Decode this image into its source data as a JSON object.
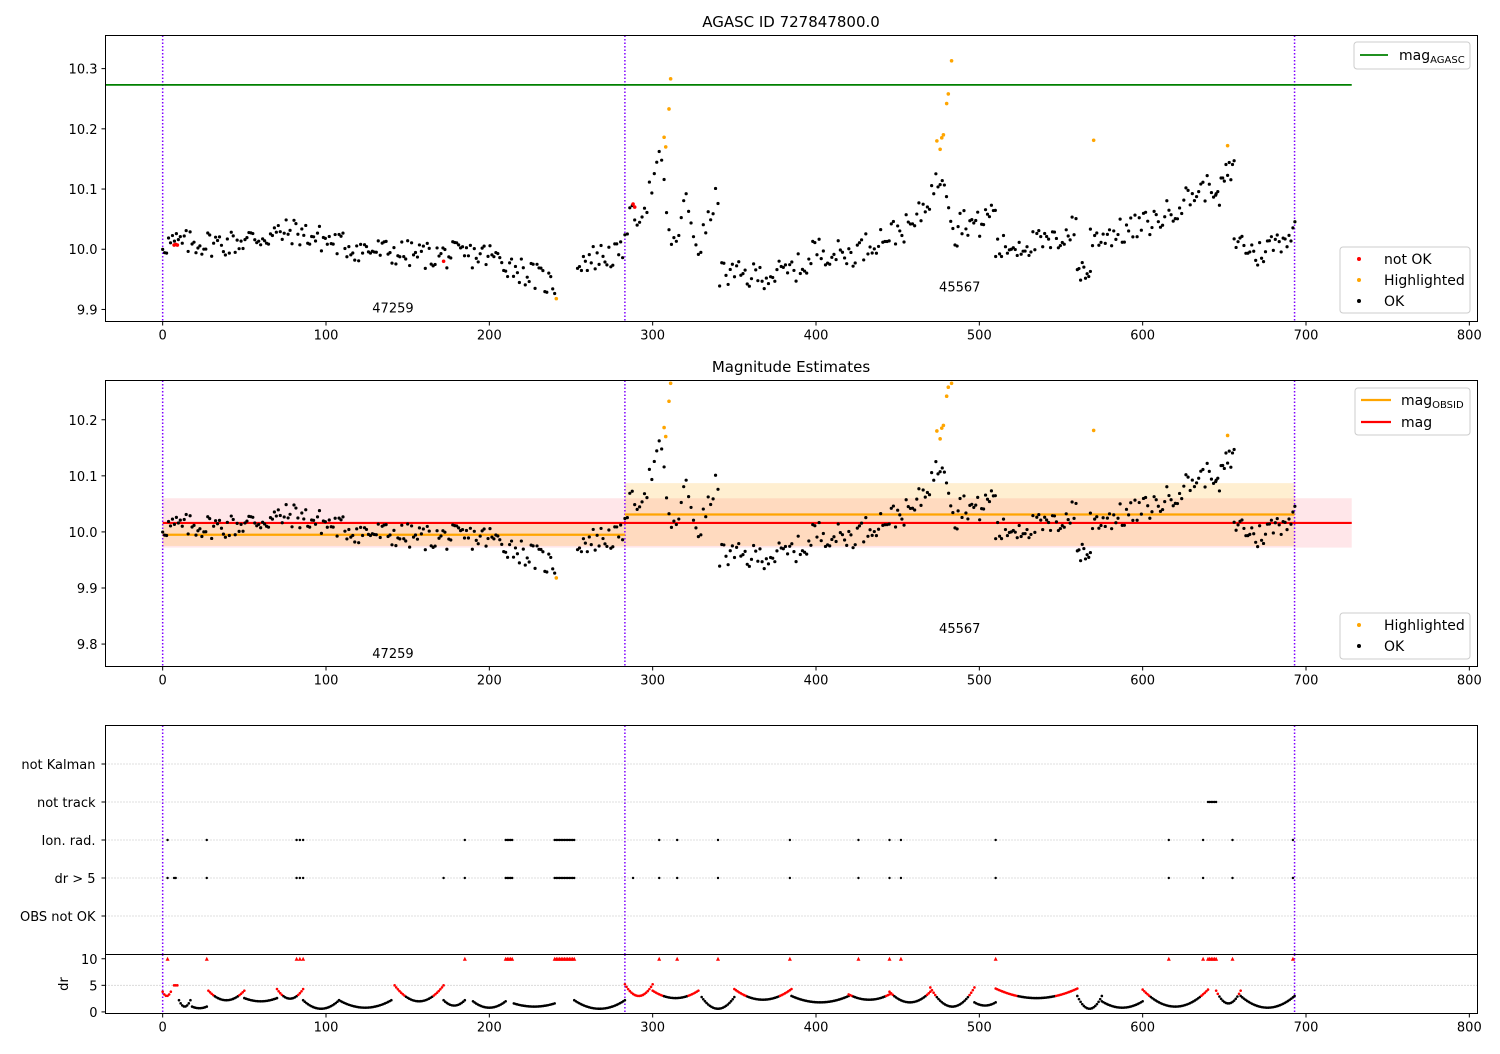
{
  "chart_data": [
    {
      "type": "scatter",
      "title": "AGASC ID 727847800.0",
      "xlim": [
        -35,
        805
      ],
      "ylim": [
        9.88,
        10.355
      ],
      "x_ticks": [
        0,
        100,
        200,
        300,
        400,
        500,
        600,
        700,
        800
      ],
      "y_ticks": [
        9.9,
        10.0,
        10.1,
        10.2,
        10.3
      ],
      "observation_boundaries": [
        0,
        283,
        693
      ],
      "observation_labels": [
        {
          "text": "47259",
          "x": 141,
          "y": 9.895
        },
        {
          "text": "45567",
          "x": 488,
          "y": 9.93
        }
      ],
      "lines": [
        {
          "name": "mag_AGASC",
          "color": "#008000",
          "x": [
            -35,
            728
          ],
          "y": [
            10.273,
            10.273
          ]
        }
      ],
      "series": [
        {
          "name": "not OK",
          "color": "#ff0000",
          "points": [
            [
              7,
              10.007
            ],
            [
              8,
              10.008
            ],
            [
              9,
              10.007
            ],
            [
              172,
              9.98
            ],
            [
              288,
              10.075
            ],
            [
              289,
              10.07
            ]
          ]
        },
        {
          "name": "Highlighted",
          "color": "#ffa500",
          "points": [
            [
              241,
              9.918
            ],
            [
              307,
              10.186
            ],
            [
              308,
              10.17
            ],
            [
              310,
              10.233
            ],
            [
              311,
              10.283
            ],
            [
              474,
              10.18
            ],
            [
              476,
              10.166
            ],
            [
              477,
              10.185
            ],
            [
              478,
              10.19
            ],
            [
              480,
              10.242
            ],
            [
              481,
              10.258
            ],
            [
              483,
              10.313
            ],
            [
              570,
              10.181
            ],
            [
              652,
              10.172
            ]
          ]
        }
      ],
      "ok_segments": [
        {
          "x_start": 0,
          "x_end": 240,
          "step": 1.2,
          "base": [
            [
              0,
              10.01
            ],
            [
              40,
              10.01
            ],
            [
              80,
              10.03
            ],
            [
              120,
              10.0
            ],
            [
              160,
              9.99
            ],
            [
              200,
              9.99
            ],
            [
              240,
              9.94
            ]
          ]
        },
        {
          "x_start": 254,
          "x_end": 282,
          "step": 1.2,
          "base": [
            [
              254,
              9.98
            ],
            [
              270,
              9.99
            ],
            [
              282,
              9.99
            ]
          ]
        },
        {
          "x_start": 283,
          "x_end": 340,
          "step": 1.5,
          "base": [
            [
              283,
              10.04
            ],
            [
              295,
              10.07
            ],
            [
              305,
              10.15
            ],
            [
              312,
              9.99
            ],
            [
              320,
              10.08
            ],
            [
              328,
              10.0
            ],
            [
              340,
              10.09
            ]
          ]
        },
        {
          "x_start": 341,
          "x_end": 398,
          "step": 1.3,
          "base": [
            [
              341,
              9.96
            ],
            [
              360,
              9.955
            ],
            [
              380,
              9.96
            ],
            [
              398,
              9.98
            ]
          ]
        },
        {
          "x_start": 398,
          "x_end": 487,
          "step": 1.3,
          "base": [
            [
              398,
              10.0
            ],
            [
              420,
              9.99
            ],
            [
              440,
              10.02
            ],
            [
              460,
              10.04
            ],
            [
              478,
              10.13
            ],
            [
              487,
              10.0
            ]
          ]
        },
        {
          "x_start": 487,
          "x_end": 510,
          "step": 1.2,
          "base": [
            [
              487,
              10.05
            ],
            [
              500,
              10.04
            ],
            [
              510,
              10.07
            ]
          ]
        },
        {
          "x_start": 510,
          "x_end": 560,
          "step": 1.2,
          "base": [
            [
              510,
              10.0
            ],
            [
              530,
              10.01
            ],
            [
              545,
              10.01
            ],
            [
              560,
              10.04
            ]
          ]
        },
        {
          "x_start": 560,
          "x_end": 568,
          "step": 1.0,
          "base": [
            [
              560,
              9.97
            ],
            [
              568,
              9.96
            ]
          ]
        },
        {
          "x_start": 568,
          "x_end": 645,
          "step": 1.3,
          "base": [
            [
              568,
              10.02
            ],
            [
              590,
              10.03
            ],
            [
              610,
              10.05
            ],
            [
              630,
              10.09
            ],
            [
              645,
              10.11
            ]
          ]
        },
        {
          "x_start": 645,
          "x_end": 656,
          "step": 1.0,
          "base": [
            [
              645,
              10.07
            ],
            [
              650,
              10.12
            ],
            [
              656,
              10.13
            ]
          ]
        },
        {
          "x_start": 656,
          "x_end": 694,
          "step": 1.2,
          "base": [
            [
              656,
              10.02
            ],
            [
              670,
              9.99
            ],
            [
              680,
              10.01
            ],
            [
              694,
              10.03
            ]
          ]
        }
      ],
      "legend_top": [
        {
          "label": "mag",
          "sub": "AGASC",
          "color": "#008000"
        }
      ],
      "legend_bottom": [
        {
          "label": "not OK",
          "color": "#ff0000"
        },
        {
          "label": "Highlighted",
          "color": "#ffa500"
        },
        {
          "label": "OK",
          "color": "#000000"
        }
      ]
    },
    {
      "type": "scatter",
      "title": "Magnitude Estimates",
      "xlim": [
        -35,
        805
      ],
      "ylim": [
        9.76,
        10.27
      ],
      "x_ticks": [
        0,
        100,
        200,
        300,
        400,
        500,
        600,
        700,
        800
      ],
      "y_ticks": [
        9.8,
        9.9,
        10.0,
        10.1,
        10.2
      ],
      "observation_boundaries": [
        0,
        283,
        693
      ],
      "observation_labels": [
        {
          "text": "47259",
          "x": 141,
          "y": 9.775
        },
        {
          "text": "45567",
          "x": 488,
          "y": 9.82
        }
      ],
      "bands": [
        {
          "color": "#ffb6c1",
          "opacity": 0.35,
          "x": [
            0,
            728
          ],
          "y": [
            9.972,
            10.06
          ]
        },
        {
          "color": "#ffa500",
          "opacity": 0.18,
          "x": [
            0,
            283
          ],
          "y": [
            9.975,
            10.015
          ]
        },
        {
          "color": "#ffa500",
          "opacity": 0.18,
          "x": [
            283,
            693
          ],
          "y": [
            9.975,
            10.087
          ]
        }
      ],
      "lines": [
        {
          "name": "mag",
          "color": "#ff0000",
          "x": [
            0,
            728
          ],
          "y": [
            10.016,
            10.016
          ]
        },
        {
          "name": "mag_OBSID 47259",
          "color": "#ffa500",
          "x": [
            0,
            283
          ],
          "y": [
            9.995,
            9.995
          ]
        },
        {
          "name": "mag_OBSID 45567",
          "color": "#ffa500",
          "x": [
            283,
            693
          ],
          "y": [
            10.031,
            10.031
          ]
        }
      ],
      "legend_top": [
        {
          "label": "mag",
          "sub": "OBSID",
          "color": "#ffa500"
        },
        {
          "label": "mag",
          "sub": "",
          "color": "#ff0000"
        }
      ],
      "legend_bottom": [
        {
          "label": "Highlighted",
          "color": "#ffa500"
        },
        {
          "label": "OK",
          "color": "#000000"
        }
      ]
    },
    {
      "type": "scatter",
      "title": "",
      "xlim": [
        -35,
        805
      ],
      "categories": [
        "not Kalman",
        "not track",
        "Ion. rad.",
        "dr > 5",
        "OBS not OK"
      ],
      "flags": {
        "not Kalman": [],
        "not track": [
          640,
          641,
          642,
          643,
          644,
          645
        ],
        "Ion. rad.": [
          3,
          27,
          82,
          84,
          86,
          185,
          210,
          211,
          212,
          213,
          214,
          240,
          241,
          242,
          243,
          244,
          245,
          246,
          247,
          248,
          249,
          250,
          251,
          252,
          304,
          315,
          340,
          384,
          426,
          445,
          452,
          510,
          616,
          637,
          655,
          692
        ],
        "dr > 5": [
          3,
          7,
          8,
          27,
          82,
          84,
          86,
          172,
          185,
          210,
          211,
          212,
          213,
          214,
          240,
          241,
          242,
          243,
          244,
          245,
          246,
          247,
          248,
          249,
          250,
          251,
          252,
          288,
          304,
          315,
          340,
          384,
          426,
          445,
          452,
          510,
          616,
          637,
          655,
          692
        ],
        "OBS not OK": []
      }
    },
    {
      "type": "scatter",
      "title": "",
      "xlabel": "",
      "ylabel": "dr",
      "xlim": [
        -35,
        805
      ],
      "ylim": [
        -0.3,
        10.8
      ],
      "x_ticks": [
        0,
        100,
        200,
        300,
        400,
        500,
        600,
        700,
        800
      ],
      "y_ticks": [
        0,
        5,
        10
      ],
      "overflow_value": 10,
      "overflow_x": [
        3,
        27,
        82,
        84,
        86,
        185,
        210,
        211,
        212,
        213,
        214,
        240,
        241,
        242,
        243,
        244,
        245,
        246,
        247,
        248,
        249,
        250,
        251,
        252,
        304,
        315,
        340,
        384,
        426,
        445,
        452,
        510,
        616,
        637,
        640,
        641,
        642,
        643,
        644,
        645,
        655,
        692
      ],
      "arcs": [
        {
          "x_start": 0,
          "x_end": 5,
          "min": 3.0,
          "max": 3.8
        },
        {
          "x_start": 7,
          "x_end": 9,
          "min": 5.0,
          "max": 5.0
        },
        {
          "x_start": 10,
          "x_end": 17,
          "min": 1.0,
          "max": 2.2
        },
        {
          "x_start": 18,
          "x_end": 27,
          "min": 0.7,
          "max": 1.0
        },
        {
          "x_start": 28,
          "x_end": 50,
          "min": 2.2,
          "max": 4.0
        },
        {
          "x_start": 50,
          "x_end": 70,
          "min": 2.0,
          "max": 2.6
        },
        {
          "x_start": 70,
          "x_end": 86,
          "min": 2.5,
          "max": 4.3
        },
        {
          "x_start": 86,
          "x_end": 108,
          "min": 0.6,
          "max": 2.2
        },
        {
          "x_start": 108,
          "x_end": 140,
          "min": 0.8,
          "max": 2.2
        },
        {
          "x_start": 142,
          "x_end": 172,
          "min": 2.0,
          "max": 5.0
        },
        {
          "x_start": 172,
          "x_end": 185,
          "min": 1.2,
          "max": 2.2
        },
        {
          "x_start": 190,
          "x_end": 210,
          "min": 0.8,
          "max": 2.0
        },
        {
          "x_start": 215,
          "x_end": 240,
          "min": 1.0,
          "max": 1.6
        },
        {
          "x_start": 252,
          "x_end": 283,
          "min": 0.6,
          "max": 2.2
        },
        {
          "x_start": 283,
          "x_end": 300,
          "min": 3.0,
          "max": 5.2
        },
        {
          "x_start": 300,
          "x_end": 328,
          "min": 2.6,
          "max": 4.0
        },
        {
          "x_start": 330,
          "x_end": 350,
          "min": 0.6,
          "max": 2.8
        },
        {
          "x_start": 350,
          "x_end": 385,
          "min": 2.3,
          "max": 4.3
        },
        {
          "x_start": 385,
          "x_end": 420,
          "min": 1.8,
          "max": 3.0
        },
        {
          "x_start": 420,
          "x_end": 445,
          "min": 2.3,
          "max": 3.3
        },
        {
          "x_start": 445,
          "x_end": 470,
          "min": 1.8,
          "max": 3.8
        },
        {
          "x_start": 470,
          "x_end": 497,
          "min": 1.0,
          "max": 4.6
        },
        {
          "x_start": 497,
          "x_end": 510,
          "min": 1.2,
          "max": 1.8
        },
        {
          "x_start": 510,
          "x_end": 560,
          "min": 2.6,
          "max": 4.4
        },
        {
          "x_start": 560,
          "x_end": 575,
          "min": 0.6,
          "max": 3.0
        },
        {
          "x_start": 575,
          "x_end": 600,
          "min": 0.8,
          "max": 2.0
        },
        {
          "x_start": 600,
          "x_end": 640,
          "min": 1.0,
          "max": 4.2
        },
        {
          "x_start": 645,
          "x_end": 660,
          "min": 1.6,
          "max": 4.0
        },
        {
          "x_start": 660,
          "x_end": 693,
          "min": 0.8,
          "max": 3.0
        }
      ]
    }
  ]
}
